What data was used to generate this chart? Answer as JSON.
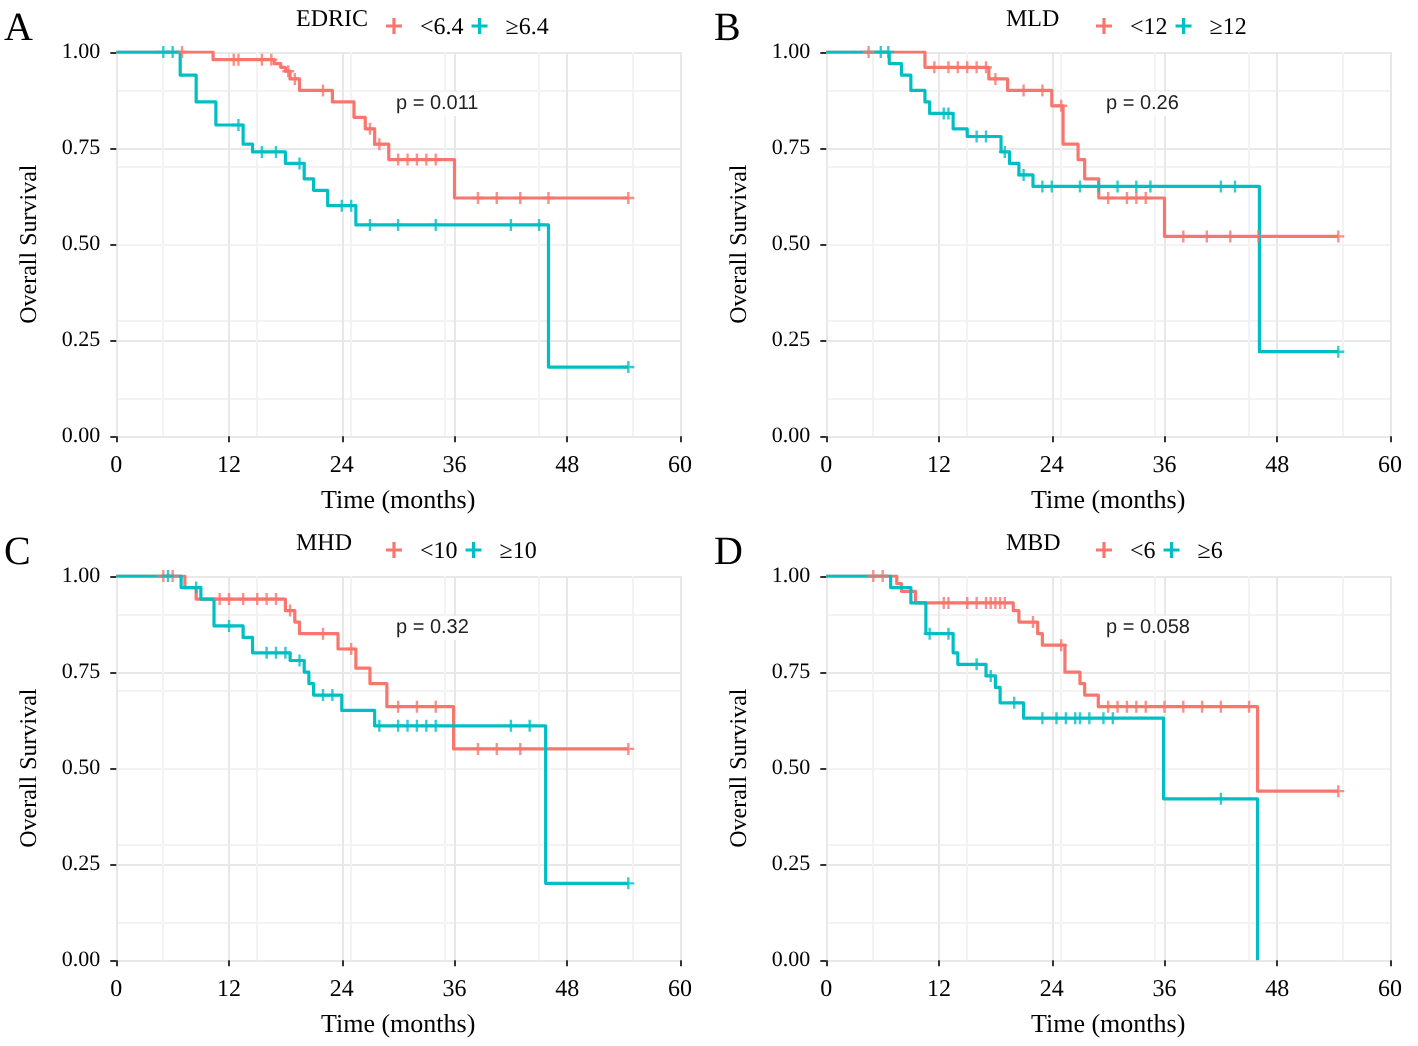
{
  "chart_data": [
    {
      "type": "step",
      "title": "A",
      "legend_title": "EDRIC",
      "xlabel": "Time (months)",
      "ylabel": "Overall Survival",
      "annotations": [
        "p = 0.011"
      ],
      "xlim": [
        0,
        60
      ],
      "xticks": [
        0,
        12,
        24,
        36,
        48,
        60
      ],
      "ylim": [
        0,
        1
      ],
      "yticks": [
        {
          "value": 0,
          "label": "0.00"
        },
        {
          "value": 0.25,
          "label": "0.25"
        },
        {
          "value": 0.5,
          "label": "0.50"
        },
        {
          "value": 0.75,
          "label": "0.75"
        },
        {
          "value": 1,
          "label": "1.00"
        }
      ],
      "grid": true,
      "legend": "top",
      "marker": "none",
      "series": [
        {
          "name": "<6.4",
          "color": "#f8766d",
          "x": [
            0,
            10.3,
            16.8,
            17.5,
            18,
            18.5,
            19.5,
            23,
            25.3,
            26.5,
            27.5,
            29,
            36,
            54.5
          ],
          "values": [
            1,
            0.98,
            0.97,
            0.96,
            0.95,
            0.93,
            0.9,
            0.87,
            0.83,
            0.8,
            0.76,
            0.72,
            0.62,
            0.62
          ]
        },
        {
          "name": "≥6.4",
          "color": "#00bfc4",
          "x": [
            0,
            6.8,
            8.5,
            10.6,
            13.5,
            14.5,
            18,
            20,
            21,
            22.5,
            25.5,
            46,
            54.5
          ],
          "values": [
            1,
            0.94,
            0.87,
            0.81,
            0.76,
            0.74,
            0.71,
            0.67,
            0.64,
            0.6,
            0.55,
            0.18,
            0.18
          ]
        },
        {
          "type": "scatter",
          "marker": "cross",
          "color": "#f8766d",
          "x": [
            7,
            12.5,
            13,
            15.5,
            16.5,
            18.3,
            19,
            22,
            27,
            28,
            30,
            31,
            32,
            33,
            34,
            38.5,
            40.5,
            43,
            46,
            54.5
          ],
          "values": [
            1,
            0.98,
            0.98,
            0.98,
            0.98,
            0.95,
            0.93,
            0.9,
            0.8,
            0.76,
            0.72,
            0.72,
            0.72,
            0.72,
            0.72,
            0.62,
            0.62,
            0.62,
            0.62,
            0.62
          ]
        },
        {
          "type": "scatter",
          "marker": "cross",
          "color": "#00bfc4",
          "x": [
            5,
            6,
            13,
            15.5,
            17,
            19.5,
            24,
            25,
            27,
            30,
            34,
            42,
            45,
            54.5
          ],
          "values": [
            1,
            1,
            0.81,
            0.74,
            0.74,
            0.71,
            0.6,
            0.6,
            0.55,
            0.55,
            0.55,
            0.55,
            0.55,
            0.18
          ]
        }
      ]
    },
    {
      "type": "step",
      "title": "B",
      "legend_title": "MLD",
      "xlabel": "Time (months)",
      "ylabel": "Overall Survival",
      "annotations": [
        "p = 0.26"
      ],
      "xlim": [
        0,
        60
      ],
      "xticks": [
        0,
        12,
        24,
        36,
        48,
        60
      ],
      "ylim": [
        0,
        1
      ],
      "yticks": [
        {
          "value": 0,
          "label": "0.00"
        },
        {
          "value": 0.25,
          "label": "0.25"
        },
        {
          "value": 0.5,
          "label": "0.50"
        },
        {
          "value": 0.75,
          "label": "0.75"
        },
        {
          "value": 1,
          "label": "1.00"
        }
      ],
      "grid": true,
      "legend": "top",
      "marker": "none",
      "series": [
        {
          "name": "<12",
          "color": "#f8766d",
          "x": [
            0,
            10.5,
            17.3,
            19.3,
            24,
            25.2,
            26.8,
            27.5,
            29,
            36,
            54.5
          ],
          "values": [
            1,
            0.96,
            0.93,
            0.9,
            0.86,
            0.76,
            0.72,
            0.67,
            0.62,
            0.52,
            0.52
          ]
        },
        {
          "name": "≥12",
          "color": "#00bfc4",
          "x": [
            0,
            6.7,
            8,
            9,
            10.5,
            11,
            13.5,
            15,
            18.6,
            19.5,
            20.5,
            22,
            46.1,
            54.5
          ],
          "values": [
            1,
            0.97,
            0.94,
            0.9,
            0.87,
            0.84,
            0.8,
            0.78,
            0.74,
            0.71,
            0.68,
            0.65,
            0.22,
            0.22
          ]
        },
        {
          "type": "scatter",
          "marker": "cross",
          "color": "#f8766d",
          "x": [
            4.5,
            11.5,
            13,
            14,
            15,
            16,
            17,
            18,
            21,
            23,
            25,
            30,
            32,
            33,
            34,
            38,
            40.5,
            43,
            46,
            54.5
          ],
          "values": [
            1,
            0.96,
            0.96,
            0.96,
            0.96,
            0.96,
            0.96,
            0.93,
            0.9,
            0.9,
            0.86,
            0.62,
            0.62,
            0.62,
            0.62,
            0.52,
            0.52,
            0.52,
            0.52,
            0.52
          ]
        },
        {
          "type": "scatter",
          "marker": "cross",
          "color": "#00bfc4",
          "x": [
            5.8,
            6.6,
            12.5,
            13,
            16,
            17,
            19,
            21,
            23,
            24,
            27,
            29,
            31,
            33,
            34.5,
            42,
            43.5,
            54.5
          ],
          "values": [
            1,
            1,
            0.84,
            0.84,
            0.78,
            0.78,
            0.74,
            0.68,
            0.65,
            0.65,
            0.65,
            0.65,
            0.65,
            0.65,
            0.65,
            0.65,
            0.65,
            0.22
          ]
        }
      ]
    },
    {
      "type": "step",
      "title": "C",
      "legend_title": "MHD",
      "xlabel": "Time (months)",
      "ylabel": "Overall Survival",
      "annotations": [
        "p = 0.32"
      ],
      "xlim": [
        0,
        60
      ],
      "xticks": [
        0,
        12,
        24,
        36,
        48,
        60
      ],
      "ylim": [
        0,
        1
      ],
      "yticks": [
        {
          "value": 0,
          "label": "0.00"
        },
        {
          "value": 0.25,
          "label": "0.25"
        },
        {
          "value": 0.5,
          "label": "0.50"
        },
        {
          "value": 0.75,
          "label": "0.75"
        },
        {
          "value": 1,
          "label": "1.00"
        }
      ],
      "grid": true,
      "legend": "top",
      "marker": "none",
      "series": [
        {
          "name": "<10",
          "color": "#f8766d",
          "x": [
            0,
            7.3,
            8.5,
            18,
            19,
            19.5,
            23.6,
            25.5,
            27,
            28.8,
            35.9,
            54.5
          ],
          "values": [
            1,
            0.97,
            0.94,
            0.91,
            0.88,
            0.85,
            0.81,
            0.76,
            0.72,
            0.66,
            0.55,
            0.55
          ]
        },
        {
          "name": "≥10",
          "color": "#00bfc4",
          "x": [
            0,
            6.9,
            9,
            10.4,
            13.5,
            14.5,
            18.5,
            20,
            20.5,
            21,
            24,
            27.5,
            45.7,
            54.5
          ],
          "values": [
            1,
            0.97,
            0.94,
            0.87,
            0.84,
            0.8,
            0.78,
            0.75,
            0.72,
            0.69,
            0.65,
            0.61,
            0.2,
            0.2
          ]
        },
        {
          "type": "scatter",
          "marker": "cross",
          "color": "#f8766d",
          "x": [
            5,
            6,
            11,
            12,
            13.5,
            15,
            16,
            17,
            18.5,
            22,
            25,
            30,
            32,
            34,
            38.5,
            40.5,
            43,
            54.5
          ],
          "values": [
            1,
            1,
            0.94,
            0.94,
            0.94,
            0.94,
            0.94,
            0.94,
            0.91,
            0.85,
            0.81,
            0.66,
            0.66,
            0.66,
            0.55,
            0.55,
            0.55,
            0.55
          ]
        },
        {
          "type": "scatter",
          "marker": "cross",
          "color": "#00bfc4",
          "x": [
            5.5,
            8.5,
            12,
            16,
            17,
            18,
            19.5,
            22,
            23,
            28,
            30,
            31,
            32,
            33,
            34,
            42,
            44,
            54.5
          ],
          "values": [
            1,
            0.97,
            0.87,
            0.8,
            0.8,
            0.8,
            0.78,
            0.69,
            0.69,
            0.61,
            0.61,
            0.61,
            0.61,
            0.61,
            0.61,
            0.61,
            0.61,
            0.2
          ]
        }
      ]
    },
    {
      "type": "step",
      "title": "D",
      "legend_title": "MBD",
      "xlabel": "Time (months)",
      "ylabel": "Overall Survival",
      "annotations": [
        "p = 0.058"
      ],
      "xlim": [
        0,
        60
      ],
      "xticks": [
        0,
        12,
        24,
        36,
        48,
        60
      ],
      "ylim": [
        0,
        1
      ],
      "yticks": [
        {
          "value": 0,
          "label": "0.00"
        },
        {
          "value": 0.25,
          "label": "0.25"
        },
        {
          "value": 0.5,
          "label": "0.50"
        },
        {
          "value": 0.75,
          "label": "0.75"
        },
        {
          "value": 1,
          "label": "1.00"
        }
      ],
      "grid": true,
      "legend": "top",
      "marker": "none",
      "series": [
        {
          "name": "<6",
          "color": "#f8766d",
          "x": [
            0,
            7.5,
            8,
            9.5,
            19.9,
            20.5,
            22.5,
            23,
            25.4,
            27,
            27.5,
            28.95,
            45.9,
            54.5
          ],
          "values": [
            1,
            0.98,
            0.96,
            0.93,
            0.91,
            0.88,
            0.85,
            0.82,
            0.75,
            0.72,
            0.69,
            0.66,
            0.44,
            0.44
          ]
        },
        {
          "name": "≥6",
          "color": "#00bfc4",
          "x": [
            0,
            6.85,
            9,
            10.6,
            13.5,
            14,
            17,
            18,
            18.5,
            21,
            35.9,
            45.9
          ],
          "values": [
            1,
            0.97,
            0.93,
            0.85,
            0.8,
            0.77,
            0.74,
            0.71,
            0.67,
            0.63,
            0.42,
            0
          ]
        },
        {
          "type": "scatter",
          "marker": "cross",
          "color": "#f8766d",
          "x": [
            5,
            6,
            12.5,
            13,
            15,
            16,
            17,
            17.5,
            18,
            18.5,
            19,
            22,
            25,
            30,
            31,
            32,
            33,
            34,
            36,
            38,
            40,
            42,
            45,
            54.5
          ],
          "values": [
            1,
            1,
            0.93,
            0.93,
            0.93,
            0.93,
            0.93,
            0.93,
            0.93,
            0.93,
            0.93,
            0.88,
            0.82,
            0.66,
            0.66,
            0.66,
            0.66,
            0.66,
            0.66,
            0.66,
            0.66,
            0.66,
            0.66,
            0.44
          ]
        },
        {
          "type": "scatter",
          "marker": "cross",
          "color": "#00bfc4",
          "x": [
            11,
            13,
            16,
            17.5,
            20,
            23,
            24.5,
            25.5,
            26.5,
            27,
            28,
            29.5,
            30.5,
            42
          ],
          "values": [
            0.85,
            0.85,
            0.77,
            0.74,
            0.67,
            0.63,
            0.63,
            0.63,
            0.63,
            0.63,
            0.63,
            0.63,
            0.63,
            0.42
          ]
        }
      ]
    }
  ]
}
